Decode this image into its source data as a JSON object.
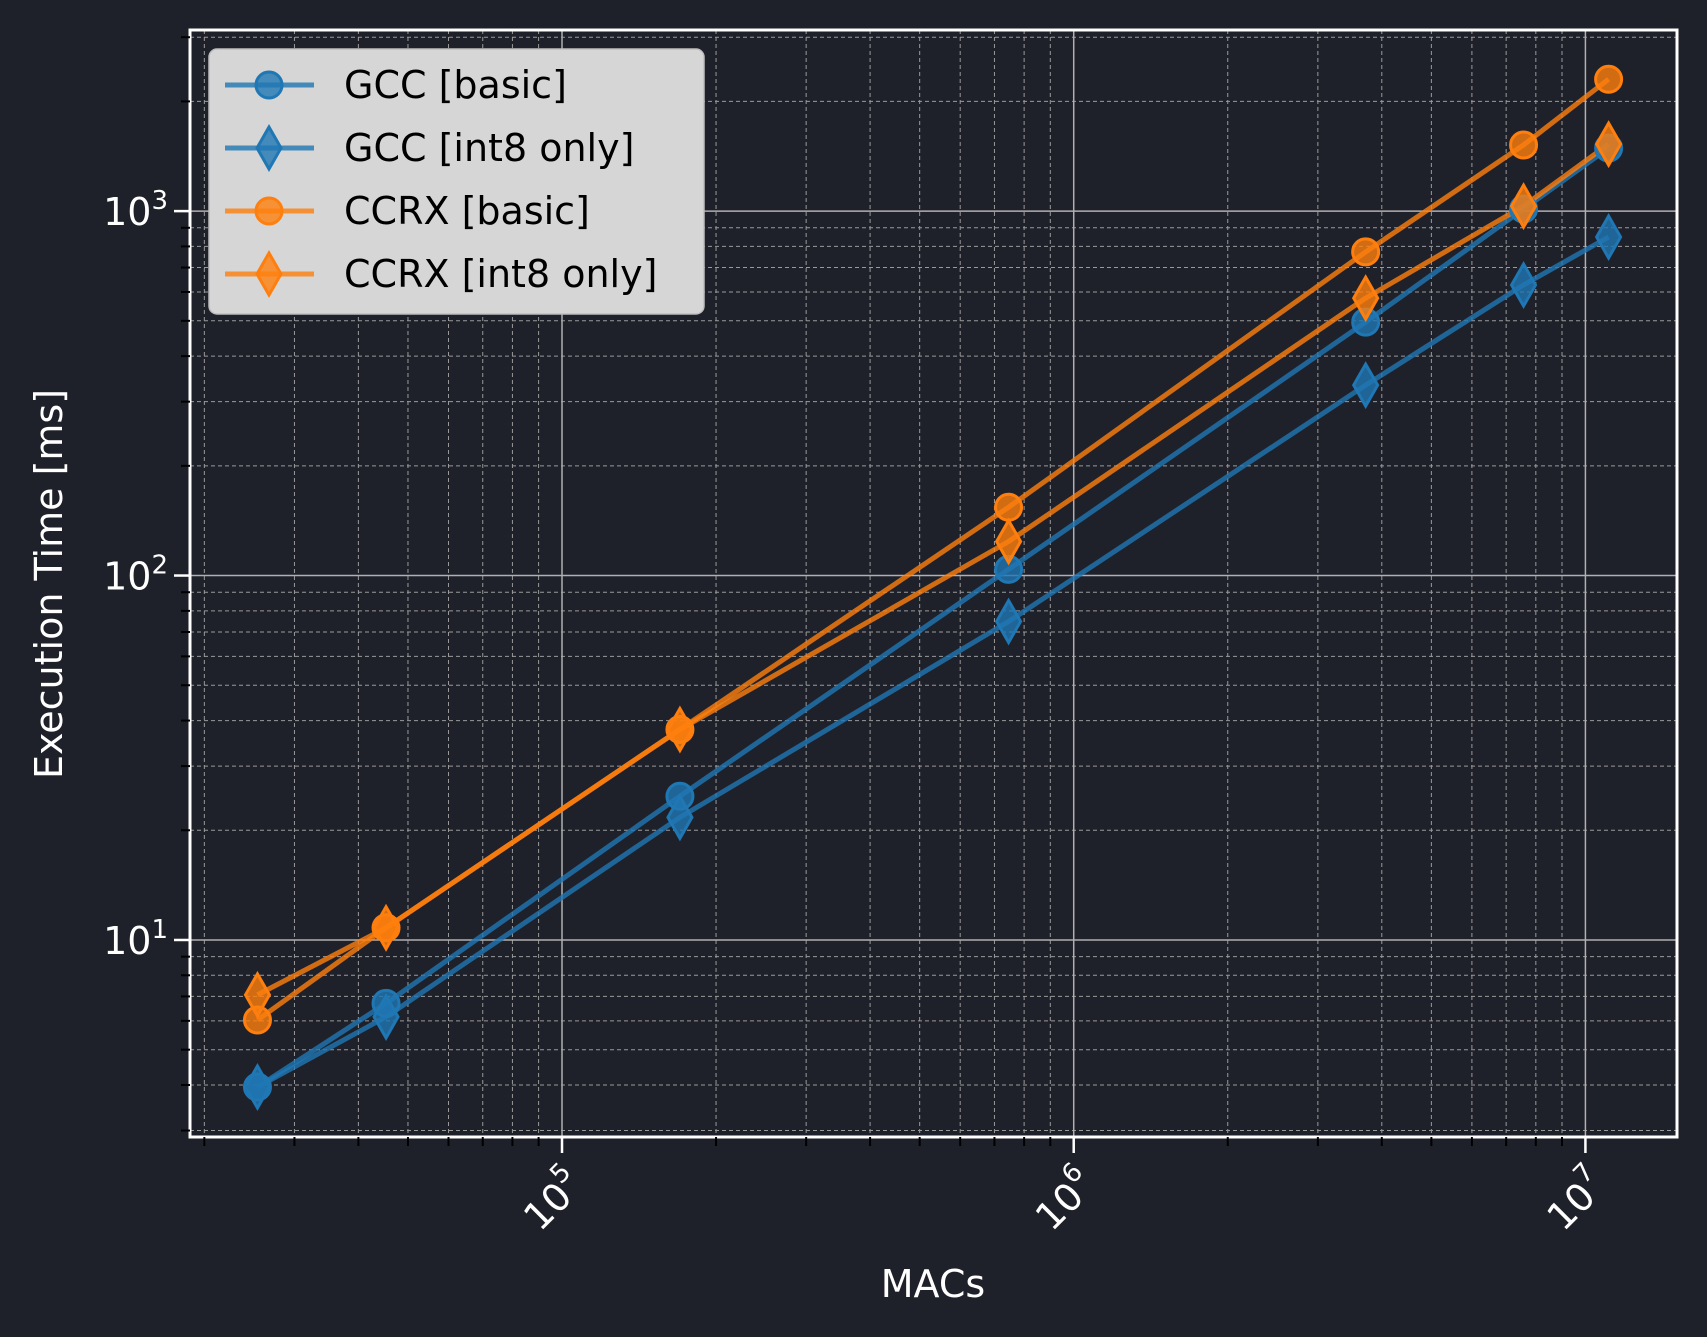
{
  "chart_data": {
    "type": "line",
    "title": "",
    "xlabel": "MACs",
    "ylabel": "Execution Time [ms]",
    "xscale": "log",
    "yscale": "log",
    "xlim": [
      18750,
      15100000
    ],
    "ylim": [
      2.88,
      3140
    ],
    "grid": true,
    "legend_position": "top-left",
    "x_ticks": [
      {
        "value": 100000,
        "base": "10",
        "exp": "5"
      },
      {
        "value": 1000000,
        "base": "10",
        "exp": "6"
      },
      {
        "value": 10000000,
        "base": "10",
        "exp": "7"
      }
    ],
    "y_ticks": [
      {
        "value": 10,
        "base": "10",
        "exp": "1"
      },
      {
        "value": 100,
        "base": "10",
        "exp": "2"
      },
      {
        "value": 1000,
        "base": "10",
        "exp": "3"
      }
    ],
    "x": [
      25400,
      45300,
      170000,
      746000,
      3720000,
      7570000,
      11100000
    ],
    "series": [
      {
        "name": "GCC [basic]",
        "marker": "circle",
        "color": "#1f77b4",
        "values": [
          3.95,
          6.7,
          24.8,
          104,
          496,
          1013,
          1489
        ]
      },
      {
        "name": "GCC [int8 only]",
        "marker": "diamond",
        "color": "#1f77b4",
        "values": [
          3.95,
          6.15,
          21.7,
          74.8,
          333,
          627,
          849
        ]
      },
      {
        "name": "CCRX [basic]",
        "marker": "circle",
        "color": "#ff7f0e",
        "values": [
          6.03,
          10.8,
          37.8,
          154,
          773,
          1518,
          2301
        ]
      },
      {
        "name": "CCRX [int8 only]",
        "marker": "diamond",
        "color": "#ff7f0e",
        "values": [
          7.07,
          10.8,
          37.8,
          124,
          577,
          1032,
          1527
        ]
      }
    ]
  },
  "colors": {
    "background": "#1f212a",
    "axes": "#ffffff",
    "major_grid": "#b0b0b0",
    "minor_grid": "#9a9a9a",
    "legend_bg": "#d6d6d6"
  }
}
